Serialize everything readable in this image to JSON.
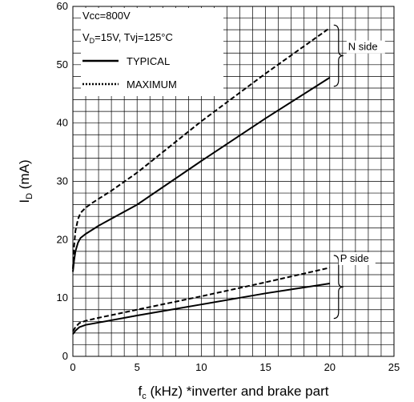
{
  "chart_data": {
    "type": "line",
    "xlabel": {
      "main": "f",
      "sub": "c",
      "rest": " (kHz) *inverter and brake part"
    },
    "ylabel": {
      "main": "I",
      "sub": "D",
      "rest": " (mA)"
    },
    "xlim": [
      0,
      25
    ],
    "ylim": [
      0,
      60
    ],
    "xticks": [
      "0",
      "5",
      "10",
      "15",
      "20",
      "25"
    ],
    "yticks": [
      "0",
      "10",
      "20",
      "30",
      "40",
      "50",
      "60"
    ],
    "grid": true,
    "conditions": {
      "line1": "Vcc=800V",
      "line2": {
        "v": "V",
        "sub": "D",
        "rest": "=15V, Tvj=125°C"
      }
    },
    "legend": [
      {
        "label": "TYPICAL",
        "style": "solid"
      },
      {
        "label": "MAXIMUM",
        "style": "dotted"
      }
    ],
    "legend_position": "top-left",
    "group_labels": [
      "N side",
      "P side"
    ],
    "series": [
      {
        "group": "N side",
        "style": "solid",
        "x": [
          0,
          0.1,
          0.2,
          0.4,
          0.6,
          1,
          1.5,
          2,
          3,
          5,
          10,
          15,
          20
        ],
        "y": [
          14.5,
          16.5,
          18,
          19.5,
          20.3,
          21,
          21.7,
          22.4,
          23.6,
          26,
          33.5,
          40.8,
          47.8
        ]
      },
      {
        "group": "N side",
        "style": "dashed",
        "x": [
          0,
          0.1,
          0.2,
          0.4,
          0.6,
          1,
          1.5,
          2,
          3,
          5,
          10,
          15,
          20
        ],
        "y": [
          15,
          19,
          21.5,
          23.5,
          24.6,
          25.5,
          26.3,
          27,
          28.4,
          31.5,
          40.3,
          48.5,
          56.3
        ]
      },
      {
        "group": "P side",
        "style": "solid",
        "x": [
          0,
          0.2,
          0.5,
          1,
          2,
          5,
          10,
          15,
          20
        ],
        "y": [
          3.8,
          4.4,
          5.0,
          5.4,
          5.8,
          7.0,
          8.9,
          10.8,
          12.5
        ]
      },
      {
        "group": "P side",
        "style": "dashed",
        "x": [
          0,
          0.2,
          0.5,
          1,
          2,
          5,
          10,
          15,
          20
        ],
        "y": [
          4.3,
          5.0,
          5.7,
          6.1,
          6.6,
          8.0,
          10.3,
          12.7,
          15.2
        ]
      }
    ]
  }
}
